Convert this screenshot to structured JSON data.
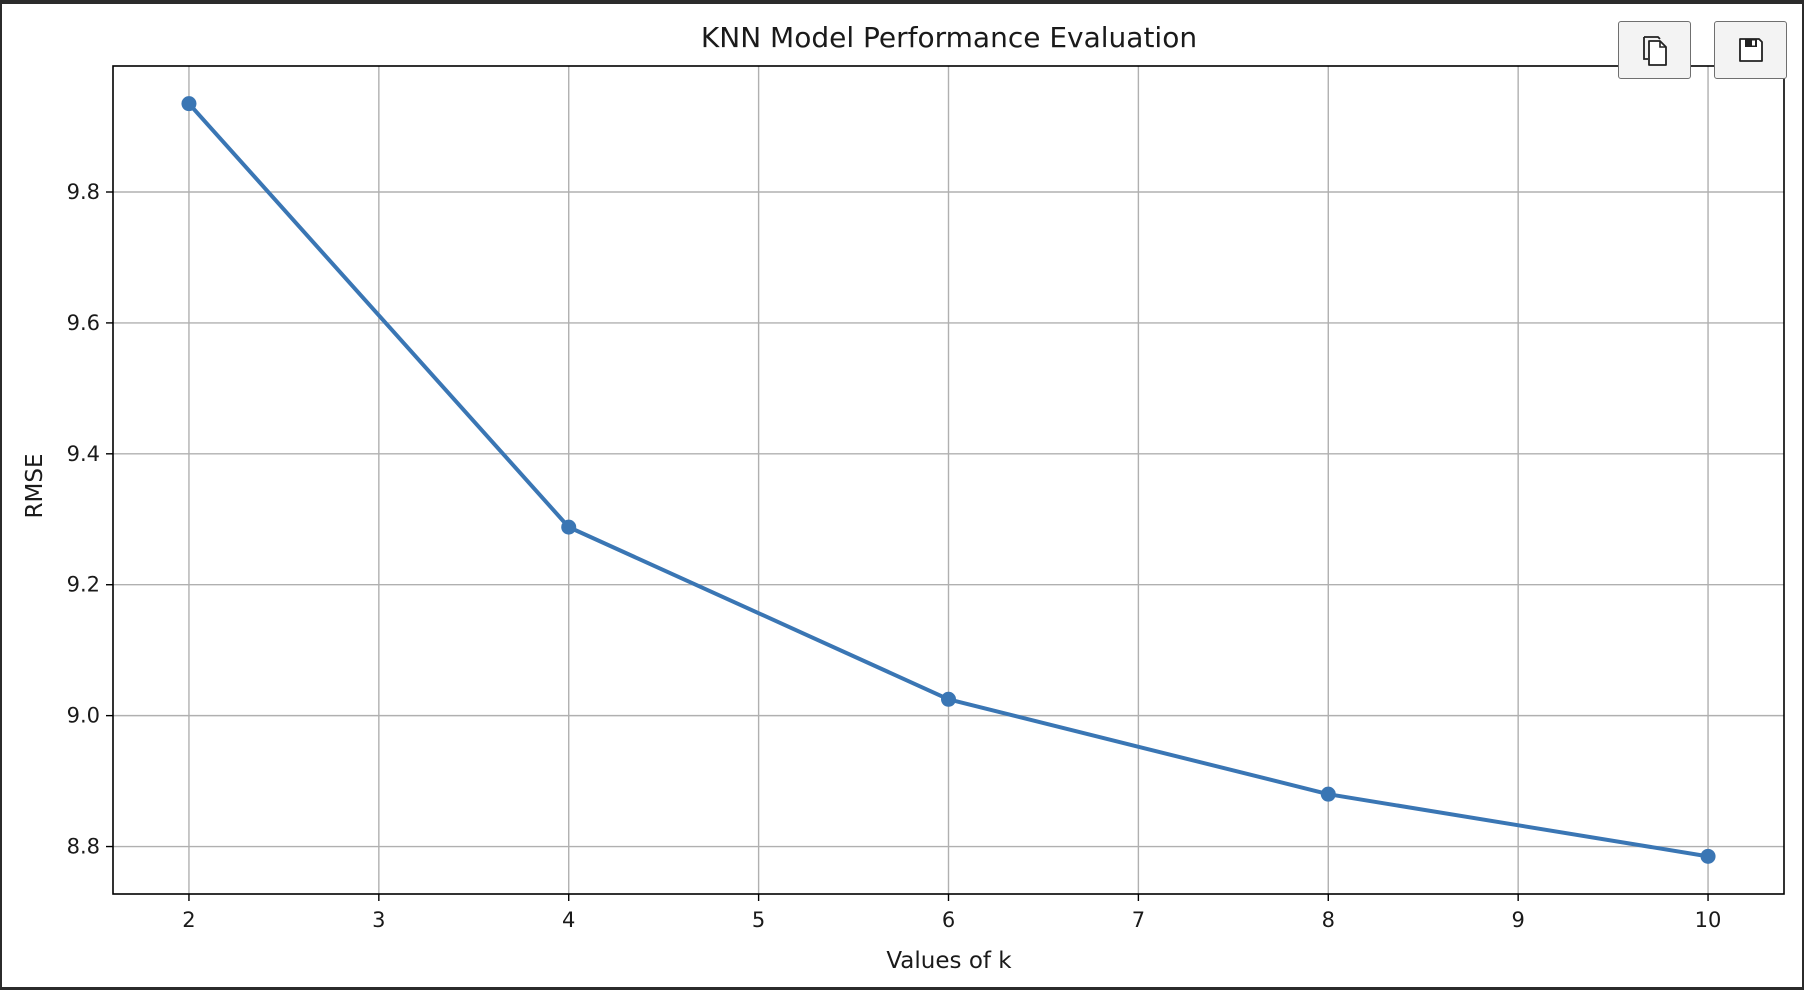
{
  "toolbar": {
    "copy_icon": "copy-icon",
    "save_icon": "floppy-disk-icon"
  },
  "colors": {
    "line": "#3a76b4",
    "grid": "#b0b0b0",
    "axes": "#000000",
    "text": "#1a1a1a"
  },
  "chart_data": {
    "type": "line",
    "title": "KNN Model Performance Evaluation",
    "xlabel": "Values of k",
    "ylabel": "RMSE",
    "x": [
      2,
      4,
      6,
      8,
      10
    ],
    "series": [
      {
        "values": [
          9.935,
          9.288,
          9.025,
          8.88,
          8.785
        ],
        "marker": "circle"
      }
    ],
    "xticks": [
      "2",
      "3",
      "4",
      "5",
      "6",
      "7",
      "8",
      "9",
      "10"
    ],
    "yticks": [
      "8.8",
      "9.0",
      "9.2",
      "9.4",
      "9.6",
      "9.8"
    ],
    "xlim": [
      1.6,
      10.4
    ],
    "ylim": [
      8.7275,
      9.9925
    ],
    "grid": true,
    "legend": false
  }
}
